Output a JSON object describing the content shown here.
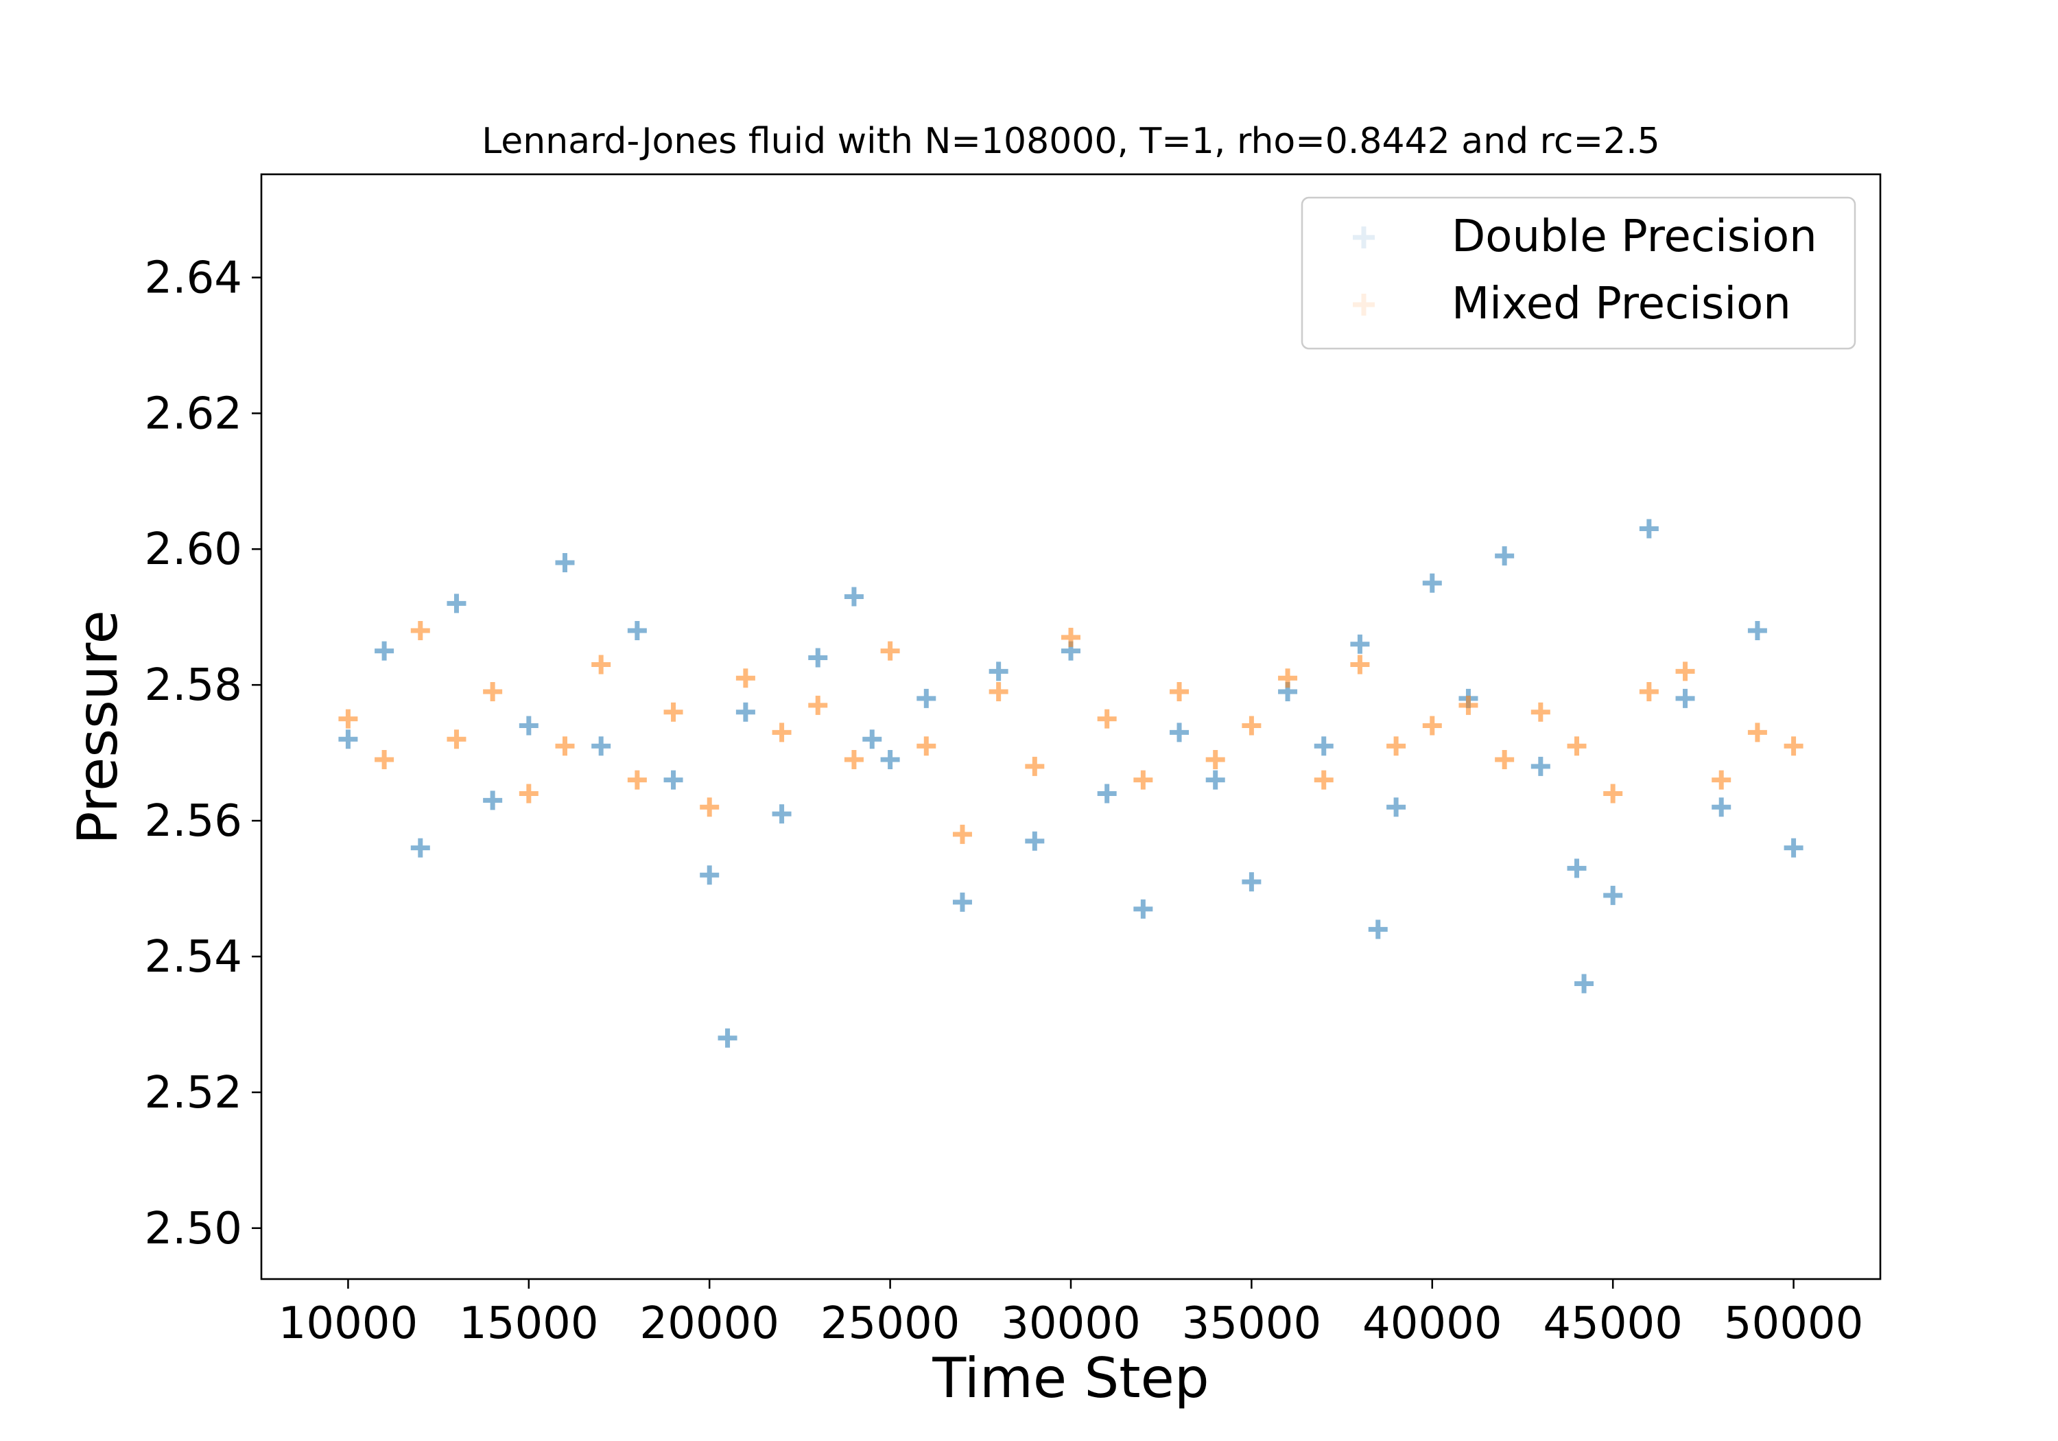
{
  "chart_data": {
    "type": "scatter",
    "title": "Lennard-Jones fluid with N=108000, T=1, rho=0.8442 and rc=2.5",
    "xlabel": "Time Step",
    "ylabel": "Pressure",
    "xlim": [
      7600,
      52400
    ],
    "ylim": [
      2.4925,
      2.6552
    ],
    "xticks": [
      10000,
      15000,
      20000,
      25000,
      30000,
      35000,
      40000,
      45000,
      50000
    ],
    "xtick_labels": [
      "10000",
      "15000",
      "20000",
      "25000",
      "30000",
      "35000",
      "40000",
      "45000",
      "50000"
    ],
    "yticks": [
      2.5,
      2.52,
      2.54,
      2.56,
      2.58,
      2.6,
      2.62,
      2.64
    ],
    "ytick_labels": [
      "2.50",
      "2.52",
      "2.54",
      "2.56",
      "2.58",
      "2.60",
      "2.62",
      "2.64"
    ],
    "grid": false,
    "legend": "top-right",
    "marker": "plus",
    "series": [
      {
        "name": "Double Precision",
        "color": "#1f77b4",
        "x": [
          10000,
          11000,
          12000,
          13000,
          14000,
          15000,
          16000,
          17000,
          18000,
          19000,
          20000,
          20500,
          21000,
          22000,
          23000,
          24000,
          24500,
          25000,
          26000,
          27000,
          28000,
          29000,
          30000,
          31000,
          32000,
          33000,
          34000,
          35000,
          36000,
          37000,
          38000,
          38500,
          39000,
          40000,
          41000,
          42000,
          43000,
          44000,
          44200,
          45000,
          46000,
          47000,
          48000,
          49000,
          50000
        ],
        "y": [
          2.572,
          2.585,
          2.556,
          2.592,
          2.563,
          2.574,
          2.598,
          2.571,
          2.588,
          2.566,
          2.552,
          2.528,
          2.576,
          2.561,
          2.584,
          2.593,
          2.572,
          2.569,
          2.578,
          2.548,
          2.582,
          2.557,
          2.585,
          2.564,
          2.547,
          2.573,
          2.566,
          2.551,
          2.579,
          2.571,
          2.586,
          2.544,
          2.562,
          2.595,
          2.578,
          2.599,
          2.568,
          2.553,
          2.536,
          2.549,
          2.603,
          2.578,
          2.562,
          2.588,
          2.556
        ]
      },
      {
        "name": "Mixed Precision",
        "color": "#ff7f0e",
        "x": [
          10000,
          11000,
          12000,
          13000,
          14000,
          15000,
          16000,
          17000,
          18000,
          19000,
          20000,
          21000,
          22000,
          23000,
          24000,
          25000,
          26000,
          27000,
          28000,
          29000,
          30000,
          31000,
          32000,
          33000,
          34000,
          35000,
          36000,
          37000,
          38000,
          39000,
          40000,
          41000,
          42000,
          43000,
          44000,
          45000,
          46000,
          47000,
          48000,
          49000,
          50000
        ],
        "y": [
          2.575,
          2.569,
          2.588,
          2.572,
          2.579,
          2.564,
          2.571,
          2.583,
          2.566,
          2.576,
          2.562,
          2.581,
          2.573,
          2.577,
          2.569,
          2.585,
          2.571,
          2.558,
          2.579,
          2.568,
          2.587,
          2.575,
          2.566,
          2.579,
          2.569,
          2.574,
          2.581,
          2.566,
          2.583,
          2.571,
          2.574,
          2.577,
          2.569,
          2.576,
          2.571,
          2.564,
          2.579,
          2.582,
          2.566,
          2.573,
          2.571
        ]
      }
    ]
  }
}
